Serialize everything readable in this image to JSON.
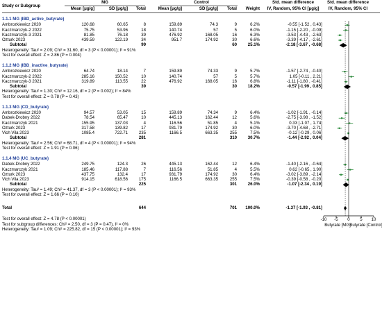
{
  "header": {
    "study": "Study or Subgroup",
    "mg_group": "MG",
    "control_group": "Control",
    "mean": "Mean [μg/g]",
    "sd": "SD [μg/g]",
    "total": "Total",
    "weight": "Weight",
    "smd_left": "Std. mean difference",
    "smd_left_sub": "IV, Random, 95% CI [μg/g]",
    "smd_right": "Std. mean difference",
    "smd_right_sub": "IV, Random, 95% CI"
  },
  "subgroups": [
    {
      "title": "1.1.1 MG (IBD_active_butyrate)",
      "studies": [
        {
          "name": "Ambrozkiewicz 2020",
          "mg_mean": "120.68",
          "mg_sd": "60.65",
          "mg_n": "8",
          "c_mean": "159.89",
          "c_sd": "74.3",
          "c_n": "9",
          "weight": "6.2%",
          "ci": "-0.55 [-1.52 , 0.43]"
        },
        {
          "name": "Kaczmarczyk-2 2022",
          "mg_mean": "75.75",
          "mg_sd": "53.96",
          "mg_n": "18",
          "c_mean": "140.74",
          "c_sd": "57",
          "c_n": "5",
          "weight": "6.0%",
          "ci": "-1.15 [-2.20 , -0.09]"
        },
        {
          "name": "Kaczmarczyk-3 2021",
          "mg_mean": "81.85",
          "mg_sd": "76.18",
          "mg_n": "39",
          "c_mean": "476.92",
          "c_sd": "168.05",
          "c_n": "16",
          "weight": "6.3%",
          "ci": "-3.53 [-4.43 , -2.63]"
        },
        {
          "name": "Ozturk 2023",
          "mg_mean": "439.59",
          "mg_sd": "122.19",
          "mg_n": "34",
          "c_mean": "951.7",
          "c_sd": "174.92",
          "c_n": "30",
          "weight": "6.6%",
          "ci": "-3.39 [-4.17 , -2.61]"
        }
      ],
      "subtotal": {
        "label": "Subtotal",
        "mg_n": "99",
        "c_n": "60",
        "weight": "25.1%",
        "ci": "-2.18 [-3.67 , -0.68]"
      },
      "effect": "Test for overall effect: Z = 2.86 (P = 0.004)",
      "heterogeneity": "Heterogeneity: Tau² = 2.09; Chi² = 31.60, df = 3 (P < 0.00001); I² = 91%"
    },
    {
      "title": "1.1.2 MG (IBD_inactive_butyrate)",
      "studies": [
        {
          "name": "Ambrozkiewicz 2020",
          "mg_mean": "64.74",
          "mg_sd": "18.14",
          "mg_n": "7",
          "c_mean": "159.89",
          "c_sd": "74.33",
          "c_n": "9",
          "weight": "5.7%",
          "ci": "-1.57 [-2.74 , -0.40]"
        },
        {
          "name": "Kaczmarczyk-2 2022",
          "mg_mean": "285.16",
          "mg_sd": "150.52",
          "mg_n": "10",
          "c_mean": "140.74",
          "c_sd": "57",
          "c_n": "5",
          "weight": "5.7%",
          "ci": "1.05 [-0.11 , 2.21]"
        },
        {
          "name": "Kaczmarczyk-3 2021",
          "mg_mean": "319.89",
          "mg_sd": "113.55",
          "mg_n": "22",
          "c_mean": "476.92",
          "c_sd": "168.05",
          "c_n": "16",
          "weight": "6.8%",
          "ci": "-1.11 [-1.80 , -0.41]"
        }
      ],
      "subtotal": {
        "label": "Subtotal",
        "mg_n": "39",
        "c_n": "30",
        "weight": "18.2%",
        "ci": "-0.57 [-1.99 , 0.85]"
      },
      "effect": "Test for overall effect: Z = 0.78 (P = 0.43)",
      "heterogeneity": "Heterogeneity: Tau² = 1.30; Chi² = 12.16, df = 2 (P = 0.002); I² = 84%"
    },
    {
      "title": "1.1.3 MG (CD_butyrate)",
      "studies": [
        {
          "name": "Ambrozkiewicz 2020",
          "mg_mean": "94.57",
          "mg_sd": "53.05",
          "mg_n": "15",
          "c_mean": "159.89",
          "c_sd": "74.34",
          "c_n": "9",
          "weight": "6.4%",
          "ci": "-1.02 [-1.91 , -0.14]"
        },
        {
          "name": "Dabek-Drobny 2022",
          "mg_mean": "78.54",
          "mg_sd": "65.47",
          "mg_n": "10",
          "c_mean": "445.13",
          "c_sd": "162.44",
          "c_n": "12",
          "weight": "5.6%",
          "ci": "-2.75 [-3.98 , -1.52]"
        },
        {
          "name": "Kaczmarczyk 2021",
          "mg_mean": "155.95",
          "mg_sd": "137.03",
          "mg_n": "4",
          "c_mean": "116.56",
          "c_sd": "51.85",
          "c_n": "4",
          "weight": "5.1%",
          "ci": "0.33 [-1.07 , 1.74]"
        },
        {
          "name": "Ozturk 2023",
          "mg_mean": "317.58",
          "mg_sd": "139.82",
          "mg_n": "17",
          "c_mean": "931.79",
          "c_sd": "174.92",
          "c_n": "30",
          "weight": "6.0%",
          "ci": "-3.70 [-4.68 , -2.71]"
        },
        {
          "name": "Vich Vila 2023",
          "mg_mean": "1085.4",
          "mg_sd": "722.71",
          "mg_n": "235",
          "c_mean": "1166.5",
          "c_sd": "663.35",
          "c_n": "255",
          "weight": "7.5%",
          "ci": "-0.12 [-0.29 , 0.06]"
        }
      ],
      "subtotal": {
        "label": "Subtotal",
        "mg_n": "281",
        "c_n": "310",
        "weight": "30.7%",
        "ci": "-1.44 [-2.92 , 0.04]"
      },
      "effect": "Test for overall effect: Z = 1.91 (P = 0.06)",
      "heterogeneity": "Heterogeneity: Tau² = 2.56; Chi² = 68.71, df = 4 (P < 0.00001); I² = 94%"
    },
    {
      "title": "1.1.4 MG (UC_butyrate)",
      "studies": [
        {
          "name": "Dabek-Drobny 2022",
          "mg_mean": "249.75",
          "mg_sd": "124.3",
          "mg_n": "26",
          "c_mean": "445.13",
          "c_sd": "162.44",
          "c_n": "12",
          "weight": "6.4%",
          "ci": "-1.40 [-2.16 , -0.64]"
        },
        {
          "name": "Kaczmarczyk 2021",
          "mg_mean": "185.46",
          "mg_sd": "117.88",
          "mg_n": "7",
          "c_mean": "116.56",
          "c_sd": "51.85",
          "c_n": "4",
          "weight": "5.5%",
          "ci": "0.62 [-0.65 , 1.90]"
        },
        {
          "name": "Ozturk 2023",
          "mg_mean": "437.75",
          "mg_sd": "132.4",
          "mg_n": "17",
          "c_mean": "931.79",
          "c_sd": "174.92",
          "c_n": "30",
          "weight": "6.4%",
          "ci": "-3.02 [-3.89 , -2.14]"
        },
        {
          "name": "Vich Vila 2023",
          "mg_mean": "914.15",
          "mg_sd": "618.56",
          "mg_n": "175",
          "c_mean": "1166.5",
          "c_sd": "663.35",
          "c_n": "255",
          "weight": "7.5%",
          "ci": "-0.39 [-0.58 , -0.20]"
        }
      ],
      "subtotal": {
        "label": "Subtotal",
        "mg_n": "225",
        "c_n": "301",
        "weight": "26.0%",
        "ci": "-1.07 [-2.34 , 0.19]"
      },
      "effect": "Test for overall effect: Z = 1.66 (P = 0.10)",
      "heterogeneity": "Heterogeneity: Tau² = 1.49; Chi² = 41.37, df = 3 (P < 0.00001); I² = 93%"
    }
  ],
  "total": {
    "label": "Total",
    "mg_n": "644",
    "c_n": "701",
    "weight": "100.0%",
    "ci": "-1.37 [-1.93 , -0.81]"
  },
  "footer": {
    "overall_effect": "Test for overall effect: Z = 4.78 (P < 0.00001)",
    "subgroup_diff": "Test for subgroup differences: Chi² = 2.50, df = 3 (P = 0.47), I² = 0%",
    "heterogeneity": "Heterogeneity: Tau² = 1.09; Chi² = 225.82, df = 15 (P < 0.00001); I² = 93%"
  },
  "chart_data": {
    "type": "forest",
    "xlim": [
      -10,
      10
    ],
    "ticks": [
      -10,
      -5,
      0,
      5,
      10
    ],
    "tick_labels": [
      "-10",
      "-5",
      "0",
      "5",
      "10"
    ],
    "left_label": "Butyrate [MG]",
    "right_label": "Butyrate [Control]",
    "study_color": "#2e8b3d",
    "diamond_color": "#000000",
    "subgroups": [
      {
        "studies": [
          {
            "est": -0.55,
            "lo": -1.52,
            "hi": 0.43,
            "w": 6.2
          },
          {
            "est": -1.15,
            "lo": -2.2,
            "hi": -0.09,
            "w": 6.0
          },
          {
            "est": -3.53,
            "lo": -4.43,
            "hi": -2.63,
            "w": 6.3
          },
          {
            "est": -3.39,
            "lo": -4.17,
            "hi": -2.61,
            "w": 6.6
          }
        ],
        "subtotal": {
          "est": -2.18,
          "lo": -3.67,
          "hi": -0.68
        }
      },
      {
        "studies": [
          {
            "est": -1.57,
            "lo": -2.74,
            "hi": -0.4,
            "w": 5.7
          },
          {
            "est": 1.05,
            "lo": -0.11,
            "hi": 2.21,
            "w": 5.7
          },
          {
            "est": -1.11,
            "lo": -1.8,
            "hi": -0.41,
            "w": 6.8
          }
        ],
        "subtotal": {
          "est": -0.57,
          "lo": -1.99,
          "hi": 0.85
        }
      },
      {
        "studies": [
          {
            "est": -1.02,
            "lo": -1.91,
            "hi": -0.14,
            "w": 6.4
          },
          {
            "est": -2.75,
            "lo": -3.98,
            "hi": -1.52,
            "w": 5.6
          },
          {
            "est": 0.33,
            "lo": -1.07,
            "hi": 1.74,
            "w": 5.1
          },
          {
            "est": -3.7,
            "lo": -4.68,
            "hi": -2.71,
            "w": 6.0
          },
          {
            "est": -0.12,
            "lo": -0.29,
            "hi": 0.06,
            "w": 7.5
          }
        ],
        "subtotal": {
          "est": -1.44,
          "lo": -2.92,
          "hi": 0.04
        }
      },
      {
        "studies": [
          {
            "est": -1.4,
            "lo": -2.16,
            "hi": -0.64,
            "w": 6.4
          },
          {
            "est": 0.62,
            "lo": -0.65,
            "hi": 1.9,
            "w": 5.5
          },
          {
            "est": -3.02,
            "lo": -3.89,
            "hi": -2.14,
            "w": 6.4
          },
          {
            "est": -0.39,
            "lo": -0.58,
            "hi": -0.2,
            "w": 7.5
          }
        ],
        "subtotal": {
          "est": -1.07,
          "lo": -2.34,
          "hi": 0.19
        }
      }
    ],
    "total": {
      "est": -1.37,
      "lo": -1.93,
      "hi": -0.81
    }
  }
}
